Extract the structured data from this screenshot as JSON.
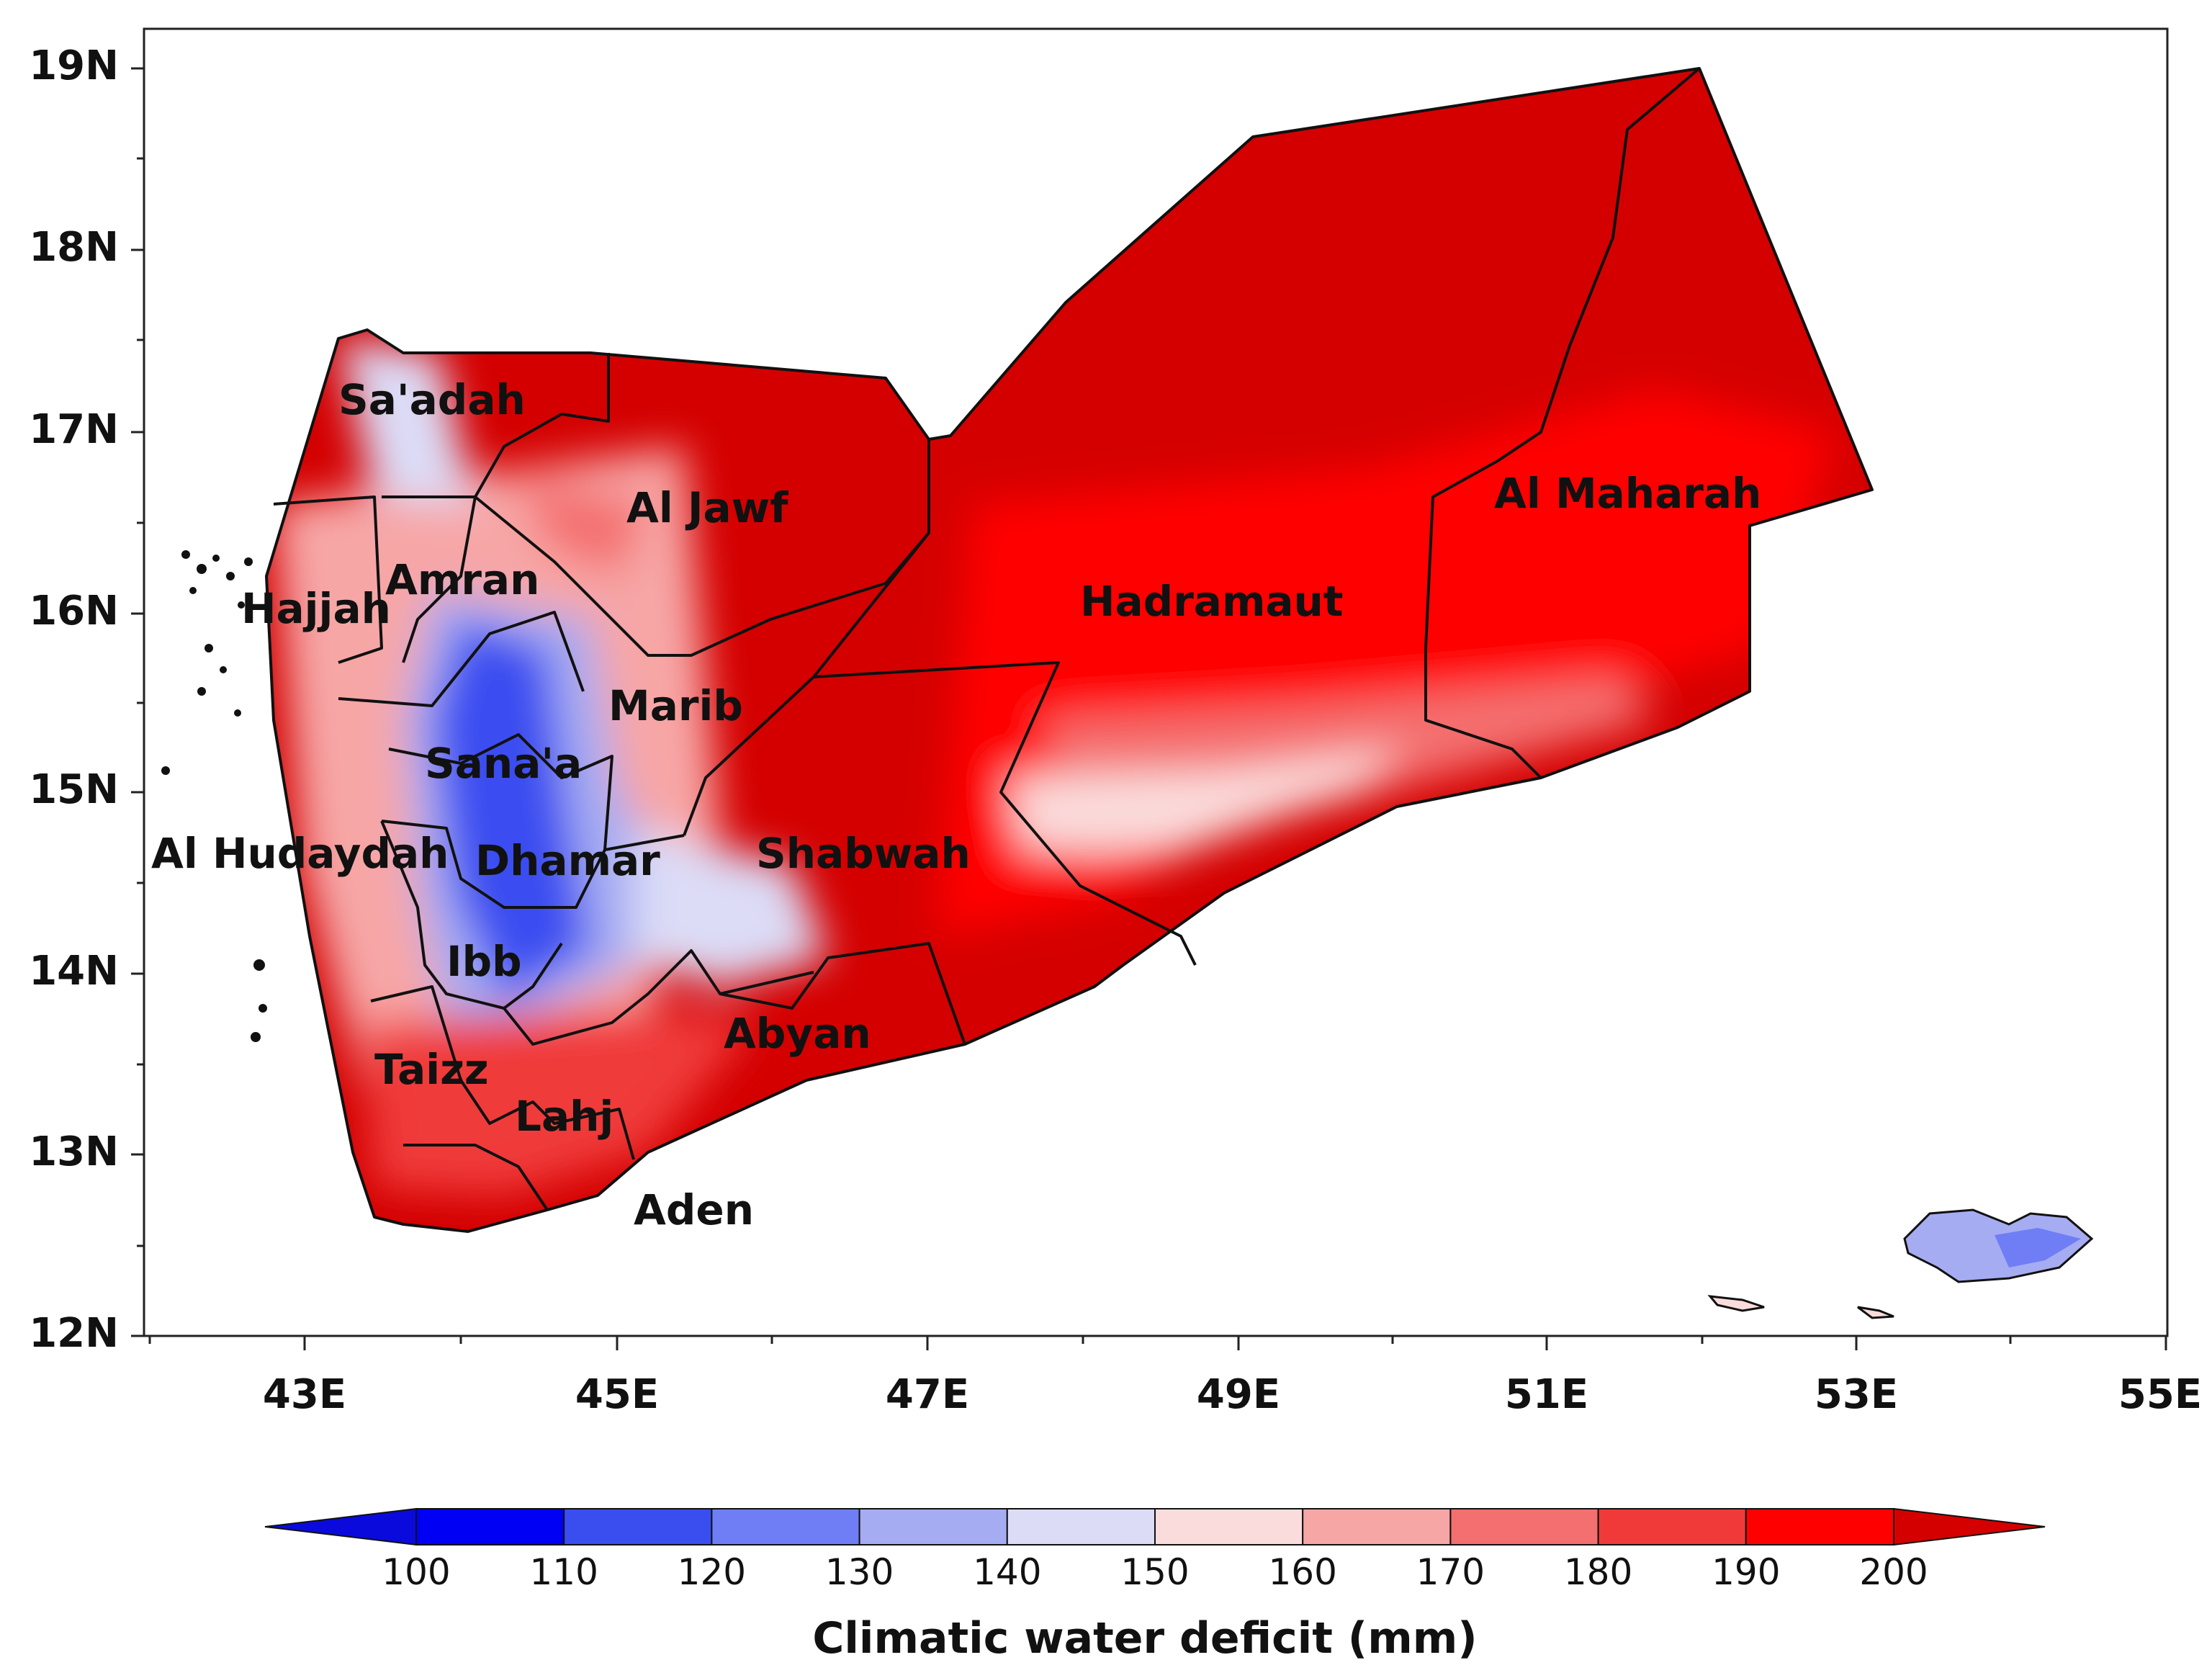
{
  "map": {
    "x_ticks": [
      "43E",
      "45E",
      "47E",
      "49E",
      "51E",
      "53E",
      "55E"
    ],
    "y_ticks": [
      "19N",
      "18N",
      "17N",
      "16N",
      "15N",
      "14N",
      "13N",
      "12N"
    ],
    "regions": [
      {
        "id": "saadah",
        "label": "Sa'adah"
      },
      {
        "id": "aljawf",
        "label": "Al Jawf"
      },
      {
        "id": "almaharah",
        "label": "Al Maharah"
      },
      {
        "id": "amran",
        "label": "Amran"
      },
      {
        "id": "hajjah",
        "label": "Hajjah"
      },
      {
        "id": "hadramaut",
        "label": "Hadramaut"
      },
      {
        "id": "marib",
        "label": "Marib"
      },
      {
        "id": "sanaa",
        "label": "Sana'a"
      },
      {
        "id": "alhudaydah",
        "label": "Al Hudaydah"
      },
      {
        "id": "dhamar",
        "label": "Dhamar"
      },
      {
        "id": "shabwah",
        "label": "Shabwah"
      },
      {
        "id": "ibb",
        "label": "Ibb"
      },
      {
        "id": "abyan",
        "label": "Abyan"
      },
      {
        "id": "taizz",
        "label": "Taizz"
      },
      {
        "id": "lahj",
        "label": "Lahj"
      },
      {
        "id": "aden",
        "label": "Aden"
      }
    ]
  },
  "colorbar": {
    "title": "Climatic water deficit (mm)",
    "labels": [
      "100",
      "110",
      "120",
      "130",
      "140",
      "150",
      "160",
      "170",
      "180",
      "190",
      "200"
    ],
    "colors": [
      "#0a0adc",
      "#0000f5",
      "#3a4ef0",
      "#6f7ef5",
      "#a6acf2",
      "#dcdcf7",
      "#fbdcdc",
      "#f7a6a6",
      "#f46f6f",
      "#f03a3a",
      "#ff0000",
      "#d40000"
    ]
  }
}
